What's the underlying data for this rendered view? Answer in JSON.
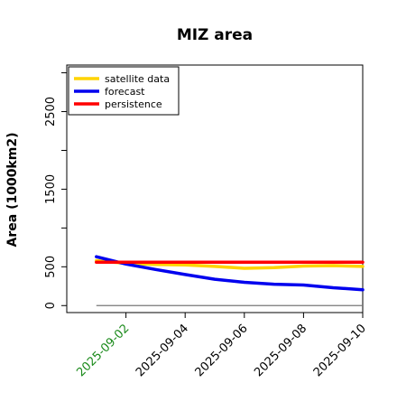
{
  "chart_data": {
    "type": "line",
    "title": "MIZ area",
    "xlabel": "",
    "ylabel": "Area (1000km2)",
    "x": [
      "2025-09-01",
      "2025-09-02",
      "2025-09-03",
      "2025-09-04",
      "2025-09-05",
      "2025-09-06",
      "2025-09-07",
      "2025-09-08",
      "2025-09-09",
      "2025-09-10"
    ],
    "x_tick_labels": [
      "2025-09-02",
      "2025-09-04",
      "2025-09-06",
      "2025-09-08",
      "2025-09-10"
    ],
    "x_tick_values": [
      "2025-09-02",
      "2025-09-04",
      "2025-09-06",
      "2025-09-08",
      "2025-09-10"
    ],
    "highlight_tick": "2025-09-02",
    "highlight_color": "#1a8a1a",
    "xlim": [
      "2025-08-31",
      "2025-09-10"
    ],
    "y_ticks": [
      0,
      500,
      1500,
      2500
    ],
    "ylim": [
      -90,
      3100
    ],
    "baseline": 0,
    "grid": false,
    "legend_position": "top-left",
    "series": [
      {
        "name": "satellite data",
        "color": "#ffd400",
        "values": [
          580,
          545,
          530,
          525,
          505,
          480,
          490,
          510,
          515,
          505
        ]
      },
      {
        "name": "forecast",
        "color": "#0000ee",
        "values": [
          630,
          535,
          465,
          400,
          340,
          300,
          275,
          265,
          230,
          205
        ]
      },
      {
        "name": "persistence",
        "color": "#ff0000",
        "values": [
          560,
          560,
          560,
          560,
          560,
          560,
          560,
          560,
          560,
          560
        ]
      }
    ]
  }
}
